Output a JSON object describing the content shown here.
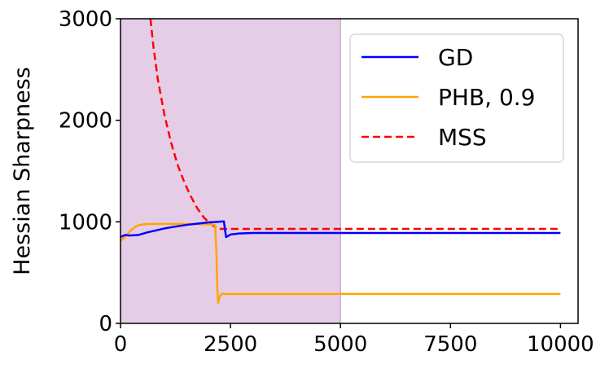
{
  "chart_data": {
    "type": "line",
    "title": "",
    "xlabel": "",
    "ylabel": "Hessian Sharpness",
    "xlim": [
      0,
      10400
    ],
    "ylim": [
      0,
      3000
    ],
    "xticks": [
      0,
      2500,
      5000,
      7500,
      10000
    ],
    "yticks": [
      0,
      1000,
      2000,
      3000
    ],
    "grid": false,
    "legend_position": "top-right",
    "shaded_region": {
      "x_start": 0,
      "x_end": 5000,
      "color": "#e6cde7"
    },
    "series": [
      {
        "name": "GD",
        "color": "#0000ff",
        "style": "solid",
        "x": [
          0,
          100,
          200,
          400,
          600,
          800,
          1000,
          1200,
          1500,
          1800,
          2000,
          2200,
          2350,
          2380,
          2400,
          2500,
          2700,
          3000,
          4000,
          5000,
          7500,
          10000
        ],
        "y": [
          850,
          870,
          865,
          870,
          895,
          915,
          935,
          950,
          970,
          985,
          995,
          1000,
          1005,
          910,
          850,
          875,
          885,
          890,
          890,
          890,
          890,
          890
        ]
      },
      {
        "name": "PHB, 0.9",
        "color": "#ffa500",
        "style": "solid",
        "x": [
          0,
          100,
          200,
          300,
          400,
          500,
          600,
          800,
          1000,
          1500,
          2000,
          2150,
          2180,
          2200,
          2220,
          2250,
          2300,
          2500,
          3000,
          5000,
          7500,
          10000
        ],
        "y": [
          810,
          850,
          900,
          940,
          965,
          975,
          978,
          980,
          980,
          980,
          975,
          970,
          700,
          350,
          200,
          260,
          290,
          290,
          290,
          290,
          290,
          290
        ]
      },
      {
        "name": "MSS",
        "color": "#ff0000",
        "style": "dashed",
        "x": [
          680,
          750,
          850,
          1000,
          1150,
          1300,
          1450,
          1600,
          1750,
          1900,
          2050,
          2150,
          2200,
          2300,
          2500,
          3000,
          5000,
          7500,
          10000
        ],
        "y": [
          3000,
          2720,
          2400,
          2050,
          1780,
          1560,
          1390,
          1250,
          1130,
          1040,
          980,
          950,
          930,
          930,
          930,
          930,
          930,
          930,
          930
        ]
      }
    ]
  },
  "legend": {
    "items": [
      {
        "label": "GD",
        "color": "#0000ff",
        "style": "solid"
      },
      {
        "label": "PHB, 0.9",
        "color": "#ffa500",
        "style": "solid"
      },
      {
        "label": "MSS",
        "color": "#ff0000",
        "style": "dashed"
      }
    ]
  }
}
